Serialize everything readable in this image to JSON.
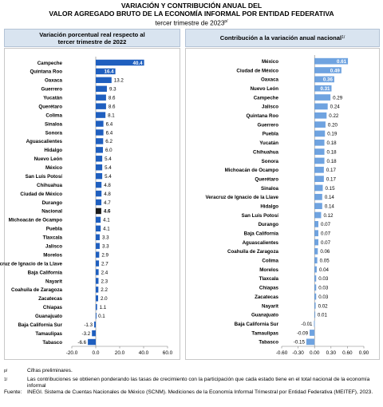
{
  "title": {
    "line1": "VARIACIÓN Y CONTRIBUCIÓN ANUAL DEL",
    "line2": "VALOR AGREGADO BRUTO DE LA ECONOMÍA INFORMAL POR ENTIDAD FEDERATIVA",
    "line3": "tercer trimestre de 2023",
    "line3_sup": "p/"
  },
  "notes": [
    {
      "key": "p/",
      "text": "Cifras preliminares."
    },
    {
      "key": "1/",
      "text": "Las contribuciones se obtienen ponderando las tasas de crecimiento con la participación que cada estado tiene en el total nacional de la economía informal"
    },
    {
      "key": "Fuente:",
      "text": "INEGI. Sistema de Cuentas Nacionales de México (SCNM). Mediciones de la Economía Informal Trimestral por Entidad Federativa (MEITEF), 2023."
    }
  ],
  "colors": {
    "bar": "#1f5fbf",
    "highlight": "#1a1a1a",
    "bar_right": "#6fa3e0"
  },
  "chart_data": [
    {
      "type": "bar",
      "orientation": "horizontal",
      "title": "Variación porcentual real respecto al tercer trimestre de 2022",
      "categories": [
        "Campeche",
        "Quintana Roo",
        "Oaxaca",
        "Guerrero",
        "Yucatán",
        "Querétaro",
        "Colima",
        "Sinaloa",
        "Sonora",
        "Aguascalientes",
        "Hidalgo",
        "Nuevo León",
        "México",
        "San Luis Potosí",
        "Chihuahua",
        "Ciudad de México",
        "Durango",
        "Nacional",
        "Michoacán de Ocampo",
        "Puebla",
        "Tlaxcala",
        "Jalisco",
        "Morelos",
        "Veracruz de Ignacio de la Llave",
        "Baja California",
        "Nayarit",
        "Coahuila de Zaragoza",
        "Zacatecas",
        "Chiapas",
        "Guanajuato",
        "Baja California Sur",
        "Tamaulipas",
        "Tabasco"
      ],
      "values": [
        40.4,
        16.4,
        13.2,
        9.3,
        8.6,
        8.6,
        8.1,
        6.4,
        6.4,
        6.2,
        6.0,
        5.4,
        5.4,
        5.4,
        4.8,
        4.8,
        4.7,
        4.6,
        4.1,
        4.1,
        3.3,
        3.3,
        2.9,
        2.7,
        2.4,
        2.3,
        2.2,
        2.0,
        1.1,
        0.1,
        -1.3,
        -3.2,
        -6.6
      ],
      "value_labels": [
        "40.4",
        "16.4",
        "13.2",
        "9.3",
        "8.6",
        "8.6",
        "8.1",
        "6.4",
        "6.4",
        "6.2",
        "6.0",
        "5.4",
        "5.4",
        "5.4",
        "4.8",
        "4.8",
        "4.7",
        "4.6",
        "4.1",
        "4.1",
        "3.3",
        "3.3",
        "2.9",
        "2.7",
        "2.4",
        "2.3",
        "2.2",
        "2.0",
        "1.1",
        "0.1",
        "-1.3",
        "-3.2",
        "-6.6"
      ],
      "highlight": "Nacional",
      "xlim": [
        -20,
        60
      ],
      "xticks": [
        "-20.0",
        "0.0",
        "20.0",
        "40.0",
        "60.0"
      ],
      "xtick_values": [
        -20,
        0,
        20,
        40,
        60
      ]
    },
    {
      "type": "bar",
      "orientation": "horizontal",
      "title": "Contribución a la variación anual nacional",
      "title_sup": "1/",
      "categories": [
        "México",
        "Ciudad de México",
        "Oaxaca",
        "Nuevo León",
        "Campeche",
        "Jalisco",
        "Quintana Roo",
        "Guerrero",
        "Puebla",
        "Yucatán",
        "Chihuahua",
        "Sonora",
        "Michoacán de Ocampo",
        "Querétaro",
        "Sinaloa",
        "Veracruz de Ignacio de la Llave",
        "Hidalgo",
        "San Luis Potosí",
        "Durango",
        "Baja California",
        "Aguascalientes",
        "Coahuila de Zaragoza",
        "Colima",
        "Morelos",
        "Tlaxcala",
        "Chiapas",
        "Zacatecas",
        "Nayarit",
        "Guanajuato",
        "Baja California Sur",
        "Tamaulipas",
        "Tabasco"
      ],
      "values": [
        0.61,
        0.49,
        0.36,
        0.31,
        0.29,
        0.24,
        0.22,
        0.2,
        0.19,
        0.18,
        0.18,
        0.18,
        0.17,
        0.17,
        0.15,
        0.14,
        0.14,
        0.12,
        0.07,
        0.07,
        0.07,
        0.06,
        0.05,
        0.04,
        0.03,
        0.03,
        0.03,
        0.02,
        0.01,
        -0.01,
        -0.09,
        -0.15
      ],
      "value_labels": [
        "0.61",
        "0.49",
        "0.36",
        "0.31",
        "0.29",
        "0.24",
        "0.22",
        "0.20",
        "0.19",
        "0.18",
        "0.18",
        "0.18",
        "0.17",
        "0.17",
        "0.15",
        "0.14",
        "0.14",
        "0.12",
        "0.07",
        "0.07",
        "0.07",
        "0.06",
        "0.05",
        "0.04",
        "0.03",
        "0.03",
        "0.03",
        "0.02",
        "0.01",
        "-0.01",
        "-0.09",
        "-0.15"
      ],
      "xlim": [
        -0.6,
        0.9
      ],
      "xticks": [
        "-0.60",
        "-0.30",
        "0.00",
        "0.30",
        "0.60",
        "0.90"
      ],
      "xtick_values": [
        -0.6,
        -0.3,
        0.0,
        0.3,
        0.6,
        0.9
      ]
    }
  ]
}
